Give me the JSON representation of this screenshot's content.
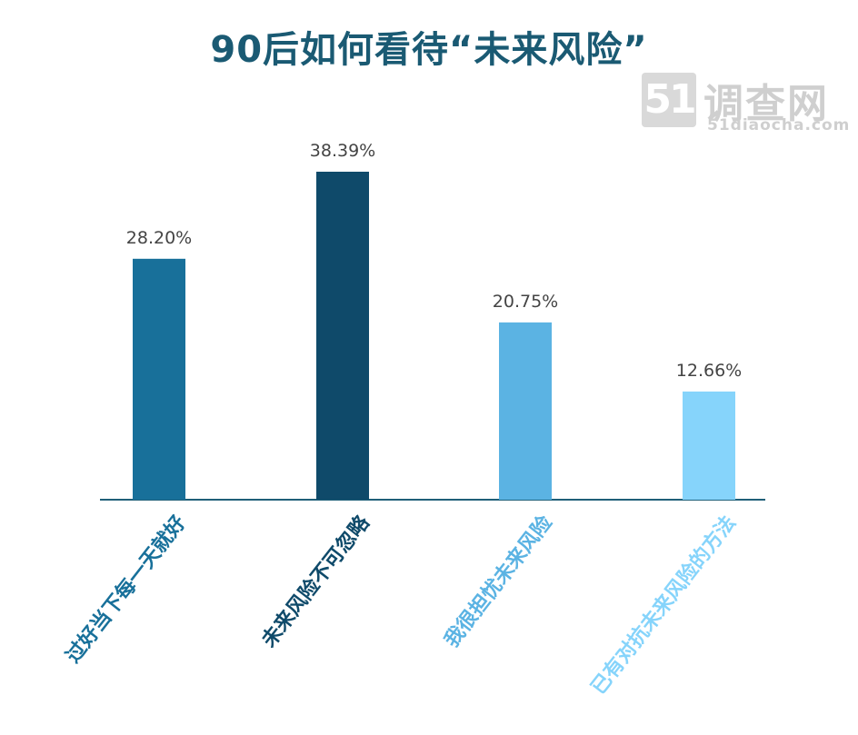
{
  "chart_data": {
    "type": "bar",
    "title": "90后如何看待“未来风险”",
    "categories": [
      "过好当下每一天就好",
      "未来风险不可忽略",
      "我很担忧未来风险",
      "已有对抗未来风险的方法"
    ],
    "values": [
      28.2,
      38.39,
      20.75,
      12.66
    ],
    "value_labels": [
      "28.20%",
      "38.39%",
      "20.75%",
      "12.66%"
    ],
    "bar_colors": [
      "#18709a",
      "#0f4a6a",
      "#5bb3e3",
      "#86d4fb"
    ],
    "label_colors": [
      "#18709a",
      "#0f4a6a",
      "#5bb3e3",
      "#86d4fb"
    ],
    "xlabel": "",
    "ylabel": "",
    "ylim": [
      0,
      42
    ],
    "grid": false,
    "legend": "none"
  },
  "watermark": {
    "badge": "51",
    "name": "调查网",
    "url": "51diaocha.com"
  },
  "colors": {
    "title": "#1a5a73",
    "axis": "#1f5f78",
    "value_label": "#444444"
  }
}
